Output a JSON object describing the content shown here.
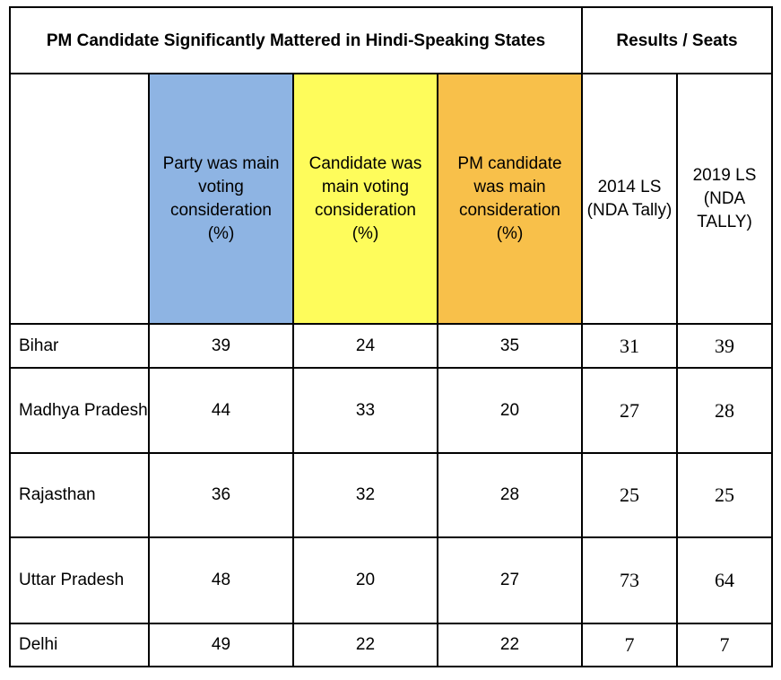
{
  "table": {
    "title": "PM Candidate Significantly Mattered in Hindi-Speaking States",
    "results_title": "Results / Seats",
    "columns": [
      {
        "label": "Party was main voting consideration (%)",
        "color": "#8eb4e3"
      },
      {
        "label": "Candidate was main voting consideration (%)",
        "color": "#fefc5b"
      },
      {
        "label": "PM candidate was main consideration (%)",
        "color": "#f8c04a"
      },
      {
        "label": "2014 LS (NDA Tally)",
        "color": "#ffffff"
      },
      {
        "label": "2019 LS (NDA TALLY)",
        "color": "#ffffff"
      }
    ],
    "rows": [
      {
        "state": "Bihar",
        "party": "39",
        "candidate": "24",
        "pm": "35",
        "ls2014": "31",
        "ls2019": "39"
      },
      {
        "state": "Madhya Pradesh",
        "party": "44",
        "candidate": "33",
        "pm": "20",
        "ls2014": "27",
        "ls2019": "28"
      },
      {
        "state": "Rajasthan",
        "party": "36",
        "candidate": "32",
        "pm": "28",
        "ls2014": "25",
        "ls2019": "25"
      },
      {
        "state": "Uttar Pradesh",
        "party": "48",
        "candidate": "20",
        "pm": "27",
        "ls2014": "73",
        "ls2019": "64"
      },
      {
        "state": "Delhi",
        "party": "49",
        "candidate": "22",
        "pm": "22",
        "ls2014": "7",
        "ls2019": "7"
      }
    ]
  }
}
